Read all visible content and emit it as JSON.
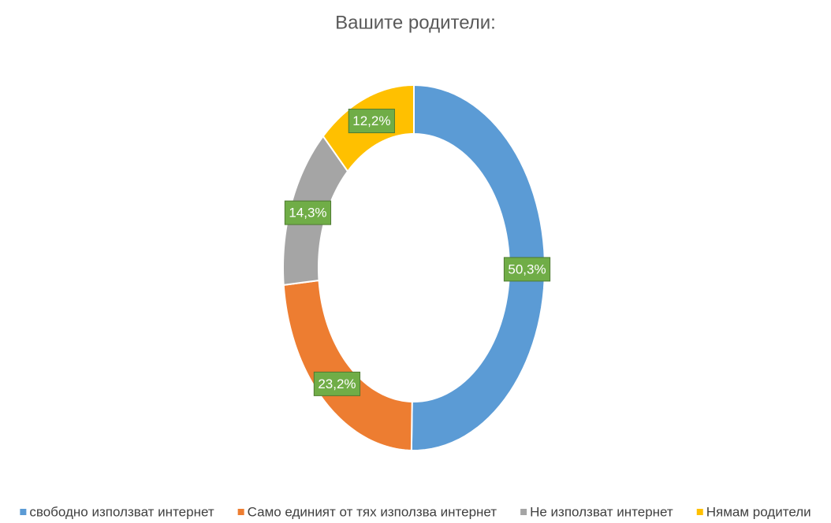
{
  "chart_data": {
    "type": "donut",
    "title": "Вашите  родители:",
    "categories": [
      "свободно използват интернет",
      "Само единият от тях използва интернет",
      "Не  използват интернет",
      "Нямам родители"
    ],
    "values": [
      50.3,
      23.2,
      14.3,
      12.2
    ],
    "value_labels": [
      "50,3%",
      "23,2%",
      "14,3%",
      "12,2%"
    ],
    "colors": [
      "#5b9bd5",
      "#ed7d31",
      "#a5a5a5",
      "#ffc000"
    ],
    "legend": "bottom"
  }
}
